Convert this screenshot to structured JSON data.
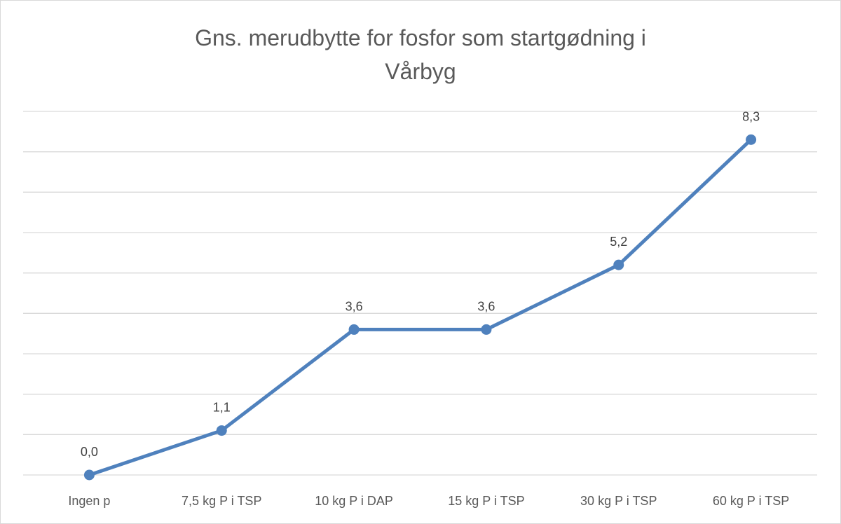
{
  "chart_data": {
    "type": "line",
    "title_line1": "Gns. merudbytte for fosfor som startgødning i",
    "title_line2": "Vårbyg",
    "categories": [
      "Ingen p",
      "7,5 kg P i TSP",
      "10 kg P i DAP",
      "15 kg P i TSP",
      "30 kg P i TSP",
      "60 kg P i TSP"
    ],
    "series": [
      {
        "values": [
          0.0,
          1.1,
          3.6,
          3.6,
          5.2,
          8.3
        ]
      }
    ],
    "data_labels": [
      "0,0",
      "1,1",
      "3,6",
      "3,6",
      "5,2",
      "8,3"
    ],
    "ylim": [
      0,
      9
    ],
    "grid": true,
    "legend": "none",
    "line_color": "#4f81bd",
    "grid_color": "#d9d9d9"
  }
}
